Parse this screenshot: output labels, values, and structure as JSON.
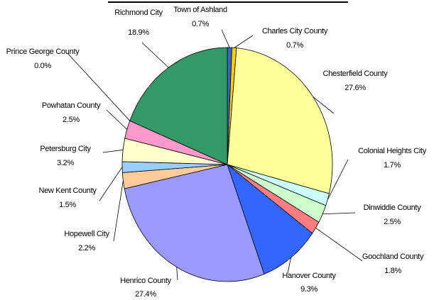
{
  "chart_data": {
    "type": "pie",
    "categories": [
      "Town of Ashland",
      "Charles City County",
      "Chesterfield County",
      "Colonial Heights City",
      "Dinwiddie County",
      "Goochland County",
      "Hanover County",
      "Henrico County",
      "Hopewell City",
      "New Kent County",
      "Petersburg City",
      "Powhatan County",
      "Prince George County",
      "Richmond City"
    ],
    "values": [
      0.7,
      0.7,
      27.6,
      1.7,
      2.5,
      1.8,
      9.3,
      27.4,
      2.2,
      1.5,
      3.2,
      2.5,
      0.0,
      18.9
    ],
    "value_labels": [
      "0.7%",
      "0.7%",
      "27.6%",
      "1.7%",
      "2.5%",
      "1.8%",
      "9.3%",
      "27.4%",
      "2.2%",
      "1.5%",
      "3.2%",
      "2.5%",
      "0.0%",
      "18.9%"
    ],
    "colors": [
      "#3366cc",
      "#ffcc00",
      "#ffff99",
      "#ccffff",
      "#ccffcc",
      "#ff7c80",
      "#3366ff",
      "#9999ff",
      "#ffcc99",
      "#99ccff",
      "#ffffcc",
      "#ff99cc",
      "#993366",
      "#339966"
    ]
  }
}
